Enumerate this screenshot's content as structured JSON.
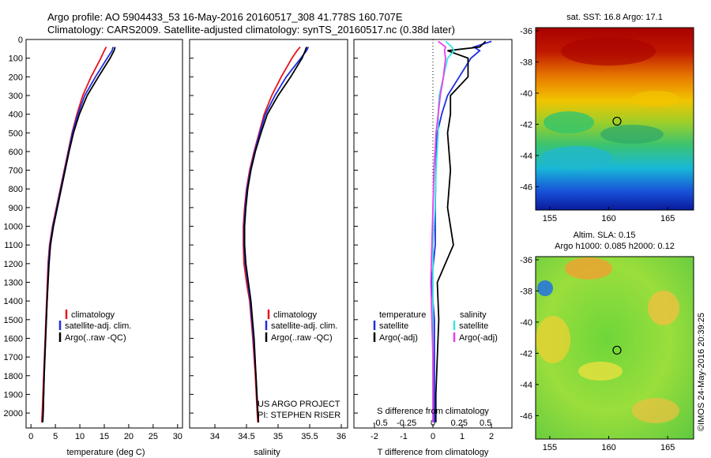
{
  "header": {
    "title_line1": "Argo profile: AO 5904433_53 16-May-2016 20160517_308 41.778S 160.707E",
    "title_line2": "Climatology: CARS2009. Satellite-adjusted climatology: synTS_20160517.nc (0.38d later)"
  },
  "colors": {
    "climatology": "#e8141e",
    "satellite": "#1f2ee0",
    "argo": "#000000",
    "sat_salinity": "#35e6e6",
    "argo_salinity": "#e83ee8"
  },
  "chart_data": [
    {
      "type": "line",
      "xlabel": "temperature (deg C)",
      "ylabel": "",
      "xlim": [
        -1,
        31
      ],
      "ylim": [
        2080,
        0
      ],
      "xticks": [
        0,
        5,
        10,
        15,
        20,
        25,
        30
      ],
      "yticks": [
        0,
        100,
        200,
        300,
        400,
        500,
        600,
        700,
        800,
        900,
        1000,
        1100,
        1200,
        1300,
        1400,
        1500,
        1600,
        1700,
        1800,
        1900,
        2000
      ],
      "legend": [
        "climatology",
        "satellite-adj. clim.",
        "Argo(..raw -QC)"
      ],
      "legend_position": "bottom-center",
      "series": [
        {
          "name": "climatology",
          "depth": [
            40,
            60,
            100,
            200,
            300,
            400,
            500,
            600,
            700,
            800,
            900,
            1000,
            1100,
            1200,
            1400,
            1600,
            1800,
            2000,
            2050
          ],
          "values": [
            15.4,
            15.0,
            14.3,
            12.3,
            10.6,
            9.4,
            8.4,
            7.6,
            6.8,
            6.0,
            5.2,
            4.4,
            3.8,
            3.5,
            3.2,
            2.9,
            2.6,
            2.3,
            2.2
          ]
        },
        {
          "name": "satellite-adj. clim.",
          "depth": [
            40,
            60,
            100,
            200,
            300,
            400,
            500,
            600,
            700,
            800,
            900,
            1000,
            1100,
            1200,
            1400,
            1600,
            1800,
            2000,
            2050
          ],
          "values": [
            16.8,
            16.6,
            15.6,
            13.2,
            11.0,
            9.6,
            8.5,
            7.7,
            6.9,
            6.1,
            5.3,
            4.5,
            3.9,
            3.6,
            3.3,
            3.0,
            2.7,
            2.5,
            2.4
          ]
        },
        {
          "name": "Argo(..raw -QC)",
          "depth": [
            40,
            60,
            100,
            200,
            300,
            400,
            500,
            600,
            700,
            800,
            900,
            1000,
            1100,
            1200,
            1400,
            1600,
            1800,
            2000,
            2050
          ],
          "values": [
            17.2,
            17.0,
            16.2,
            13.8,
            11.5,
            9.9,
            8.7,
            7.8,
            7.0,
            6.2,
            5.4,
            4.6,
            4.0,
            3.7,
            3.3,
            3.0,
            2.7,
            2.5,
            2.4
          ]
        }
      ]
    },
    {
      "type": "line",
      "xlabel": "salinity",
      "ylabel": "",
      "xlim": [
        33.6,
        36.1
      ],
      "ylim": [
        2080,
        0
      ],
      "xticks": [
        34,
        34.5,
        35,
        35.5,
        36
      ],
      "xticklabels": [
        "34",
        "34.5",
        "35",
        "35.5",
        "36"
      ],
      "legend": [
        "climatology",
        "satellite-adj. clim.",
        "Argo(..raw -QC)"
      ],
      "legend_position": "bottom-center",
      "annotation": [
        "US ARGO PROJECT",
        "PI: STEPHEN RISER"
      ],
      "series": [
        {
          "name": "climatology",
          "depth": [
            40,
            60,
            100,
            200,
            300,
            400,
            500,
            600,
            700,
            800,
            900,
            1000,
            1100,
            1200,
            1300,
            1400,
            1600,
            1800,
            2000,
            2050
          ],
          "values": [
            35.35,
            35.3,
            35.22,
            35.05,
            34.9,
            34.78,
            34.7,
            34.62,
            34.55,
            34.5,
            34.47,
            34.45,
            34.45,
            34.46,
            34.5,
            34.55,
            34.6,
            34.64,
            34.67,
            34.68
          ]
        },
        {
          "name": "satellite-adj. clim.",
          "depth": [
            40,
            60,
            100,
            200,
            300,
            400,
            500,
            600,
            700,
            800,
            900,
            1000,
            1100,
            1200,
            1300,
            1400,
            1600,
            1800,
            2000,
            2050
          ],
          "values": [
            35.48,
            35.45,
            35.36,
            35.13,
            34.95,
            34.8,
            34.71,
            34.63,
            34.56,
            34.51,
            34.48,
            34.46,
            34.46,
            34.48,
            34.52,
            34.56,
            34.61,
            34.65,
            34.68,
            34.69
          ]
        },
        {
          "name": "Argo(..raw -QC)",
          "depth": [
            40,
            60,
            100,
            200,
            300,
            400,
            500,
            600,
            700,
            800,
            900,
            1000,
            1100,
            1200,
            1300,
            1400,
            1600,
            1800,
            2000,
            2050
          ],
          "values": [
            35.45,
            35.43,
            35.38,
            35.2,
            35.0,
            34.83,
            34.73,
            34.64,
            34.57,
            34.52,
            34.49,
            34.47,
            34.47,
            34.49,
            34.53,
            34.57,
            34.62,
            34.65,
            34.68,
            34.69
          ]
        }
      ]
    },
    {
      "type": "line",
      "xlabel": "T difference from climatology",
      "xlabel_top": "S difference from climatology",
      "xlim": [
        -2.7,
        2.7
      ],
      "ylim": [
        2080,
        0
      ],
      "xticks": [
        -2,
        -1,
        0,
        1,
        2
      ],
      "xticks_secondary": [
        "-0.5",
        "-0.25",
        "0",
        "0.25",
        "0.5"
      ],
      "legend": [
        "temperature",
        "satellite",
        "Argo(-adj)",
        "salinity",
        "satellite",
        "Argo(-adj)"
      ],
      "legend_position": "bottom-center",
      "series": [
        {
          "name": "satellite",
          "quantity": "temperature",
          "depth": [
            10,
            40,
            60,
            100,
            200,
            300,
            400,
            500,
            700,
            900,
            1100,
            1300,
            1500,
            1700,
            1900,
            2050
          ],
          "values": [
            2.0,
            1.4,
            1.6,
            1.3,
            0.9,
            0.5,
            0.3,
            0.15,
            0.1,
            0.08,
            0.08,
            -0.05,
            0.05,
            0.05,
            0.05,
            0.05
          ]
        },
        {
          "name": "Argo(-adj)",
          "quantity": "temperature",
          "depth": [
            10,
            40,
            60,
            100,
            200,
            300,
            400,
            500,
            700,
            900,
            1100,
            1300,
            1500,
            1700,
            1900,
            2050
          ],
          "values": [
            1.8,
            1.6,
            0.5,
            1.2,
            1.2,
            0.6,
            0.6,
            0.5,
            0.6,
            0.5,
            0.7,
            0.15,
            0.2,
            0.15,
            0.1,
            0.1
          ]
        },
        {
          "name": "satellite",
          "quantity": "salinity",
          "depth": [
            10,
            40,
            60,
            100,
            200,
            300,
            400,
            500,
            700,
            900,
            1100,
            1300,
            1500,
            1700,
            1900,
            2050
          ],
          "values": [
            0.12,
            0.18,
            0.2,
            0.14,
            0.1,
            0.06,
            0.05,
            0.05,
            0.03,
            0.02,
            0.0,
            0.0,
            0.0,
            0.0,
            0.0,
            0.0
          ]
        },
        {
          "name": "Argo(-adj)",
          "quantity": "salinity",
          "depth": [
            10,
            40,
            60,
            100,
            200,
            300,
            400,
            500,
            700,
            900,
            1100,
            1300,
            1500,
            1700,
            1900,
            2050
          ],
          "values": [
            0.05,
            0.12,
            0.11,
            0.12,
            0.1,
            0.07,
            0.05,
            0.03,
            0.01,
            0.0,
            -0.01,
            -0.02,
            -0.01,
            0.0,
            0.0,
            0.0
          ]
        }
      ]
    },
    {
      "type": "heatmap",
      "title": "sat. SST: 16.8 Argo: 17.1",
      "xlim": [
        153.8,
        167.2
      ],
      "ylim": [
        -47.5,
        -35.8
      ],
      "xticks": [
        155,
        160,
        165
      ],
      "yticks": [
        -36,
        -38,
        -40,
        -42,
        -44,
        -46
      ],
      "marker": {
        "lon": 160.7,
        "lat": -41.8
      }
    },
    {
      "type": "heatmap",
      "title": "Altim. SLA: 0.15",
      "subtitle": "Argo h1000: 0.085 h2000: 0.12",
      "xlim": [
        153.8,
        167.2
      ],
      "ylim": [
        -47.5,
        -35.8
      ],
      "xticks": [
        155,
        160,
        165
      ],
      "yticks": [
        -36,
        -38,
        -40,
        -42,
        -44,
        -46
      ],
      "marker": {
        "lon": 160.7,
        "lat": -41.8
      }
    }
  ],
  "legend_temp": {
    "l1": "climatology",
    "l2": "satellite-adj. clim.",
    "l3": "Argo(..raw -QC)"
  },
  "legend_sal": {
    "l1": "climatology",
    "l2": "satellite-adj. clim.",
    "l3": "Argo(..raw -QC)"
  },
  "legend_diff": {
    "h1": "temperature",
    "t1": "satellite",
    "t2": "Argo(-adj)",
    "h2": "salinity",
    "s1": "satellite",
    "s2": "Argo(-adj)"
  },
  "credit": {
    "line1": "US ARGO PROJECT",
    "line2": "PI: STEPHEN RISER"
  },
  "stamp": "©IMOS 24-May-2016 20:39:25"
}
